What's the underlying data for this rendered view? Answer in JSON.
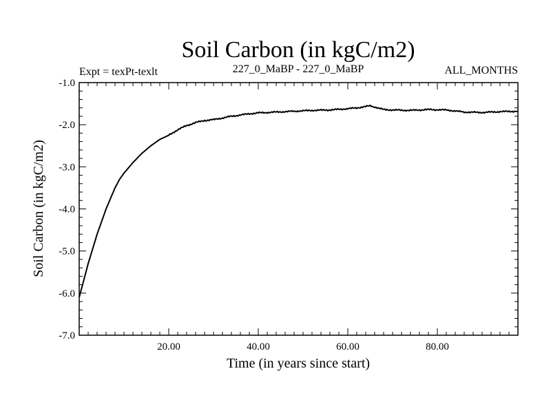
{
  "chart_data": {
    "type": "line",
    "title": "Soil Carbon (in kgC/m2)",
    "subtitle_left": "Expt = texPt-texlt",
    "subtitle_center": "227_0_MaBP - 227_0_MaBP",
    "subtitle_right": "ALL_MONTHS",
    "xlabel": "Time (in years since start)",
    "ylabel": "Soil Carbon (in kgC/m2)",
    "xlim": [
      0,
      98
    ],
    "ylim": [
      -7.0,
      -1.0
    ],
    "x_ticks": [
      {
        "value": 20,
        "label": "20.00"
      },
      {
        "value": 40,
        "label": "40.00"
      },
      {
        "value": 60,
        "label": "60.00"
      },
      {
        "value": 80,
        "label": "80.00"
      }
    ],
    "y_ticks": [
      {
        "value": -1.0,
        "label": "-1.0"
      },
      {
        "value": -2.0,
        "label": "-2.0"
      },
      {
        "value": -3.0,
        "label": "-3.0"
      },
      {
        "value": -4.0,
        "label": "-4.0"
      },
      {
        "value": -5.0,
        "label": "-5.0"
      },
      {
        "value": -6.0,
        "label": "-6.0"
      },
      {
        "value": -7.0,
        "label": "-7.0"
      }
    ],
    "series": [
      {
        "name": "Soil Carbon",
        "color": "#000000",
        "x": [
          0,
          1,
          2,
          3,
          4,
          5,
          6,
          7,
          8,
          9,
          10,
          12,
          14,
          16,
          18,
          20,
          22,
          24,
          26,
          28,
          30,
          32,
          34,
          36,
          38,
          40,
          44,
          48,
          52,
          56,
          60,
          62,
          64,
          65,
          66,
          68,
          70,
          74,
          78,
          82,
          86,
          90,
          94,
          98
        ],
        "values": [
          -6.1,
          -5.7,
          -5.3,
          -4.95,
          -4.6,
          -4.3,
          -4.0,
          -3.75,
          -3.5,
          -3.3,
          -3.15,
          -2.9,
          -2.68,
          -2.5,
          -2.35,
          -2.25,
          -2.12,
          -2.02,
          -1.95,
          -1.9,
          -1.88,
          -1.84,
          -1.8,
          -1.77,
          -1.74,
          -1.72,
          -1.7,
          -1.68,
          -1.66,
          -1.65,
          -1.62,
          -1.6,
          -1.57,
          -1.55,
          -1.58,
          -1.64,
          -1.65,
          -1.66,
          -1.64,
          -1.65,
          -1.7,
          -1.71,
          -1.69,
          -1.68
        ]
      }
    ]
  }
}
